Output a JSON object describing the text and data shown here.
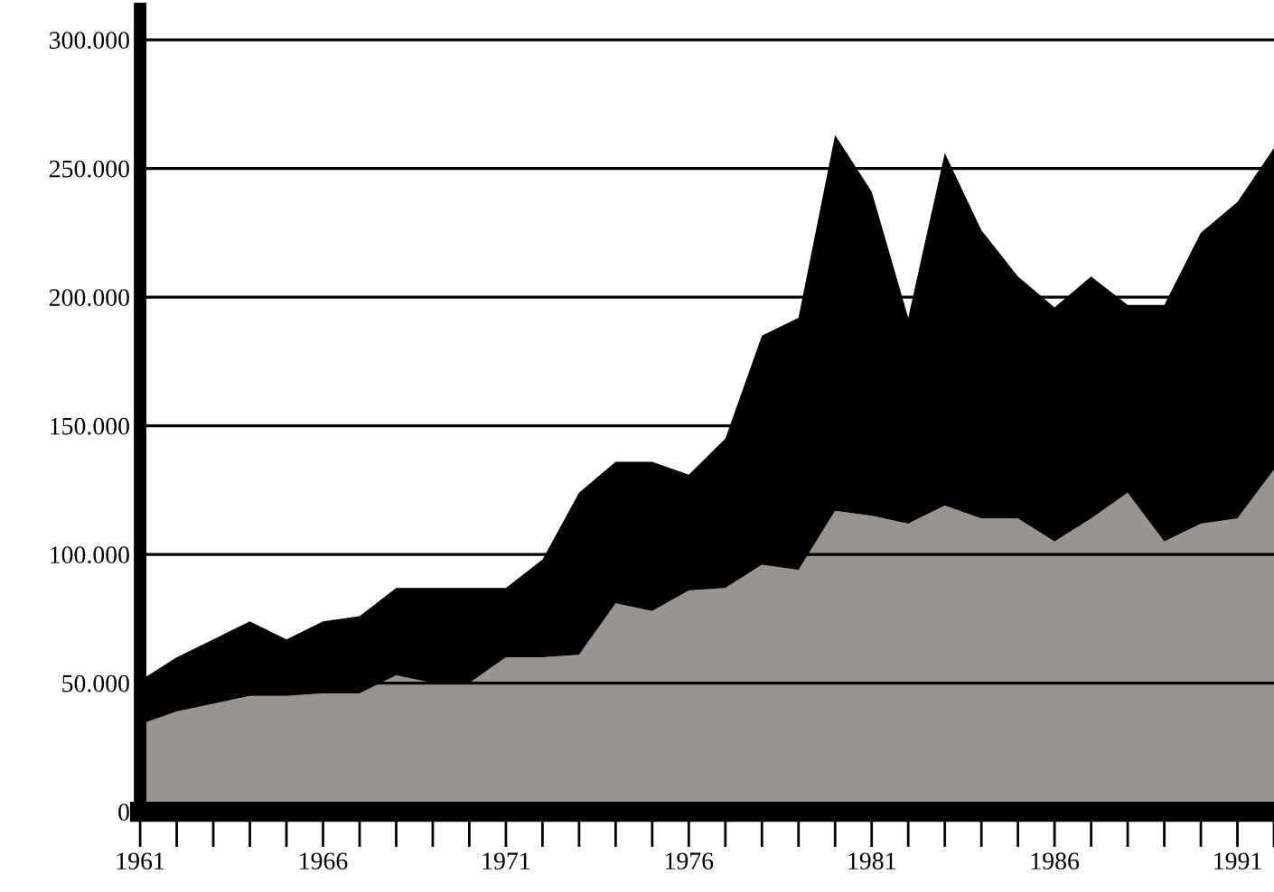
{
  "chart_data": {
    "type": "area",
    "stacked": true,
    "grid": "y",
    "x": [
      1961,
      1962,
      1963,
      1964,
      1965,
      1966,
      1967,
      1968,
      1969,
      1970,
      1971,
      1972,
      1973,
      1974,
      1975,
      1976,
      1977,
      1978,
      1979,
      1980,
      1981,
      1982,
      1983,
      1984,
      1985,
      1986,
      1987,
      1988,
      1989,
      1990,
      1991,
      1992
    ],
    "series": [
      {
        "color": "#9a9490",
        "values": [
          34000,
          39000,
          42000,
          45000,
          45000,
          46000,
          46000,
          53000,
          50000,
          50000,
          60000,
          60000,
          61000,
          81000,
          78000,
          86000,
          87000,
          96000,
          94000,
          117000,
          115000,
          112000,
          119000,
          114000,
          114000,
          105000,
          114000,
          124000,
          105000,
          112000,
          114000,
          133000
        ]
      },
      {
        "color": "#000000",
        "values": [
          17000,
          21000,
          25000,
          29000,
          22000,
          28000,
          30000,
          34000,
          37000,
          37000,
          27000,
          38000,
          63000,
          55000,
          58000,
          45000,
          58000,
          89000,
          98000,
          146000,
          126000,
          80000,
          137000,
          112000,
          94000,
          91000,
          94000,
          73000,
          92000,
          113000,
          123000,
          125000
        ]
      }
    ],
    "xlim": [
      1961,
      1992
    ],
    "ylim": [
      0,
      312000
    ],
    "xticks": [
      1961,
      1966,
      1971,
      1976,
      1981,
      1986,
      1991
    ],
    "yticks": [
      {
        "value": 0,
        "label": "0"
      },
      {
        "value": 50000,
        "label": "50.000"
      },
      {
        "value": 100000,
        "label": "100.000"
      },
      {
        "value": 150000,
        "label": "150.000"
      },
      {
        "value": 200000,
        "label": "200.000"
      },
      {
        "value": 250000,
        "label": "250.000"
      },
      {
        "value": 300000,
        "label": "300.000"
      }
    ]
  }
}
